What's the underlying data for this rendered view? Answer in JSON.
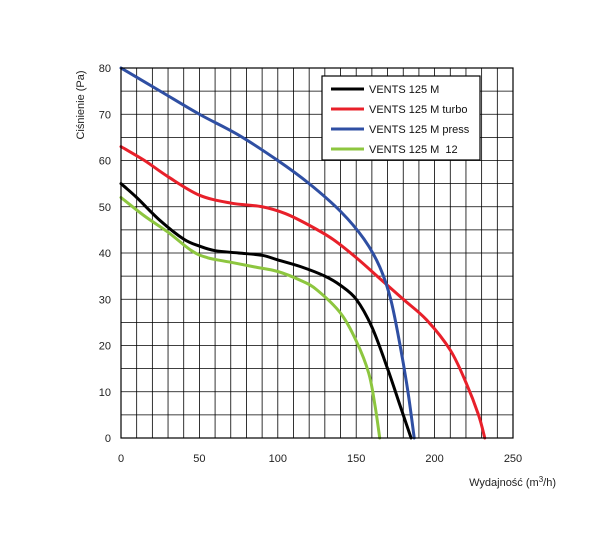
{
  "chart_data": {
    "type": "line",
    "title": "",
    "xlabel": "Wydajność (m³/h)",
    "xlabel_main": "Wydajność (m",
    "xlabel_sup": "3",
    "xlabel_end": "/h)",
    "ylabel": "Ciśnienie (Pa)",
    "xlim": [
      0,
      250
    ],
    "ylim": [
      0,
      80
    ],
    "xticks": [
      0,
      50,
      100,
      150,
      200,
      250
    ],
    "yticks": [
      0,
      10,
      20,
      30,
      40,
      50,
      60,
      70,
      80
    ],
    "grid": true,
    "legend_position": "top-right",
    "series": [
      {
        "name": "VENTS 125 M",
        "color": "#000000",
        "x": [
          0,
          10,
          25,
          40,
          50,
          60,
          75,
          90,
          100,
          115,
          130,
          140,
          150,
          160,
          170,
          178,
          185
        ],
        "y": [
          55,
          52,
          47,
          43,
          41.5,
          40.5,
          40,
          39.5,
          38.5,
          37,
          35,
          33,
          30,
          24,
          15,
          7,
          0
        ]
      },
      {
        "name": "VENTS 125 M turbo",
        "color": "#e8202a",
        "x": [
          0,
          15,
          30,
          50,
          70,
          90,
          105,
          120,
          135,
          150,
          165,
          180,
          195,
          210,
          220,
          228,
          232
        ],
        "y": [
          63,
          60,
          56.5,
          52.5,
          50.8,
          50,
          48.5,
          46,
          43,
          39,
          34.5,
          30,
          25.5,
          19,
          12,
          5,
          0
        ]
      },
      {
        "name": "VENTS 125 M press",
        "color": "#2f4fa3",
        "x": [
          0,
          25,
          50,
          75,
          100,
          120,
          140,
          155,
          165,
          172,
          178,
          183,
          187
        ],
        "y": [
          80,
          75,
          70,
          65.5,
          60,
          55,
          49,
          43,
          37,
          30,
          20,
          10,
          0
        ]
      },
      {
        "name": "VENTS 125 M  12",
        "color": "#8dc63f",
        "x": [
          0,
          15,
          30,
          45,
          55,
          70,
          85,
          100,
          115,
          125,
          140,
          150,
          158,
          162,
          165
        ],
        "y": [
          52,
          48,
          44.5,
          40.5,
          39,
          38,
          37,
          36,
          34,
          32,
          27,
          21,
          14,
          7,
          0
        ]
      }
    ]
  }
}
